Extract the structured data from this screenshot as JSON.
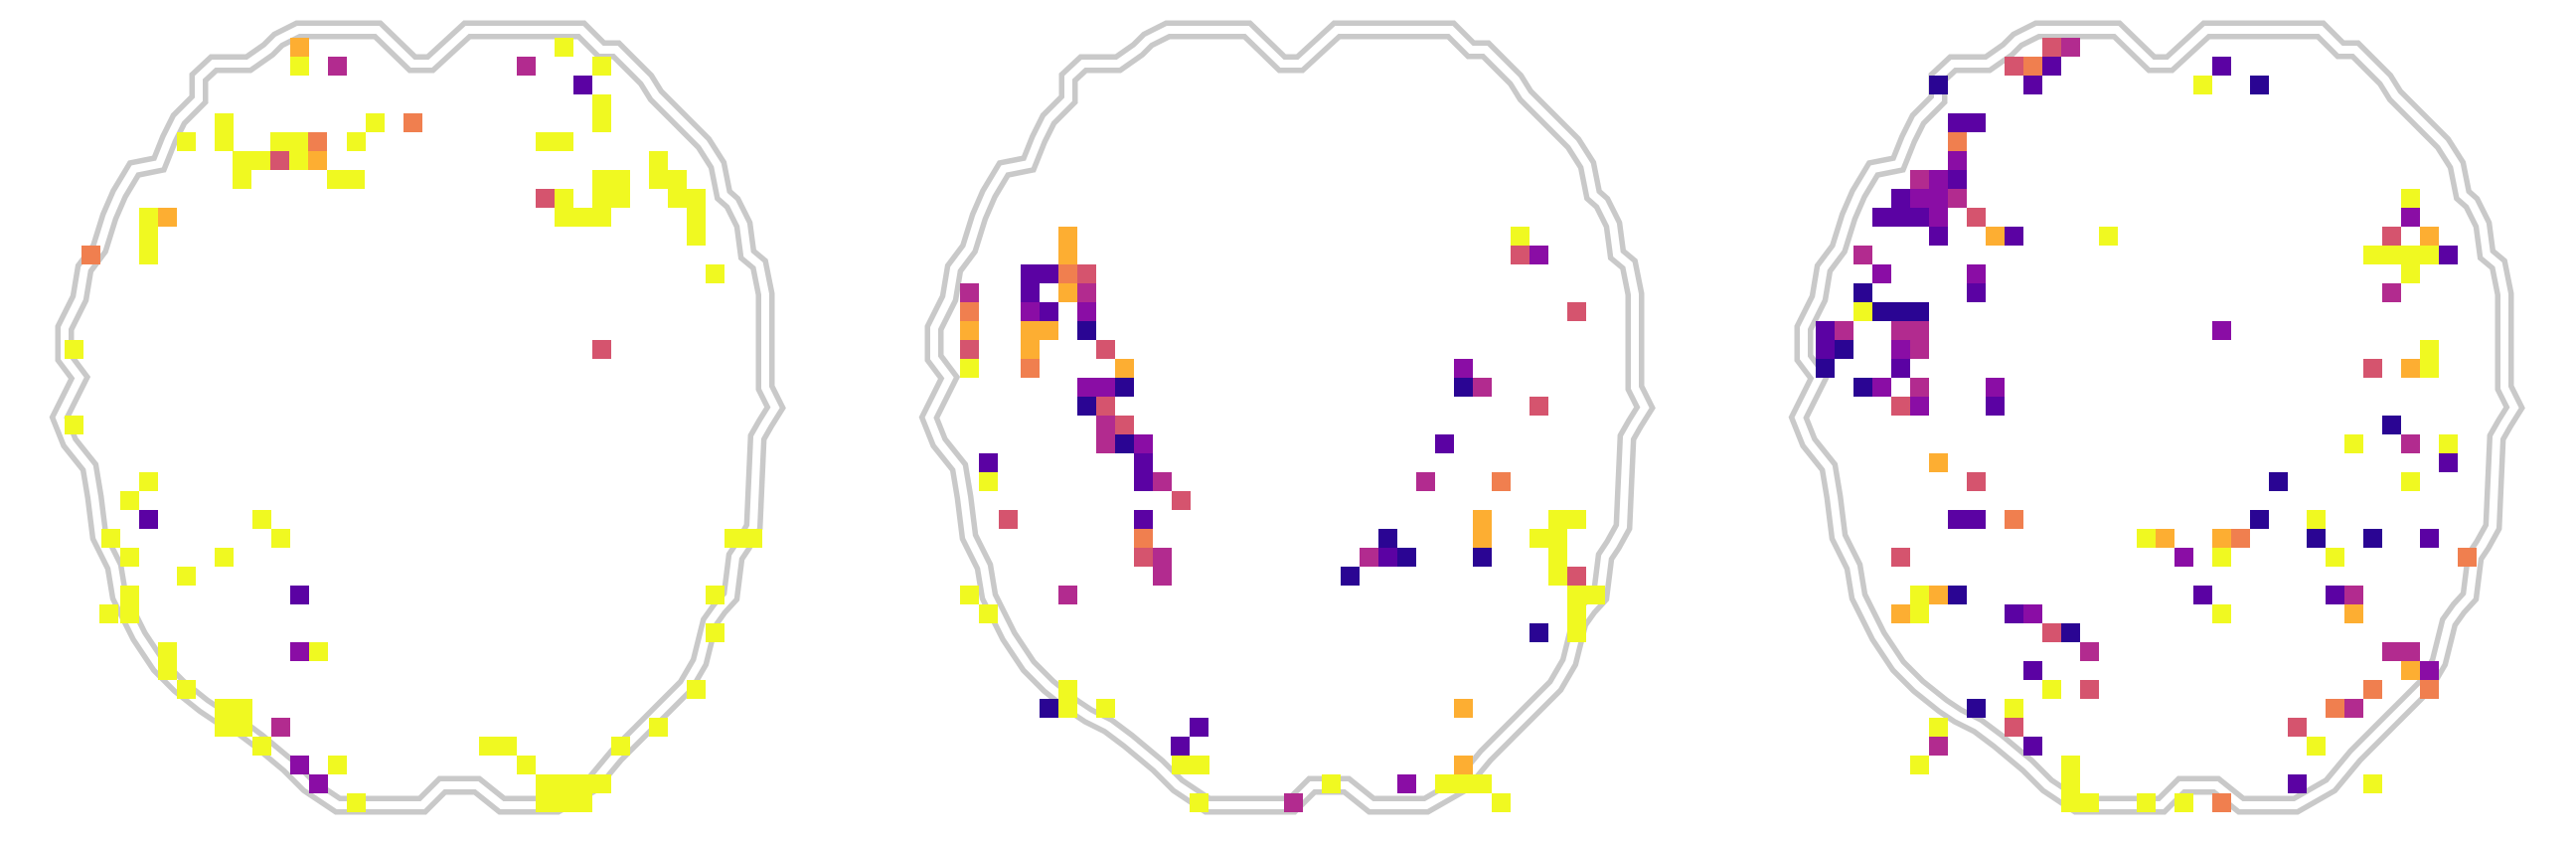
{
  "figure": {
    "title": "",
    "panels": [
      {
        "id": "panel-1",
        "colormap": "plasma"
      },
      {
        "id": "panel-2",
        "colormap": "plasma"
      },
      {
        "id": "panel-3",
        "colormap": "plasma"
      }
    ]
  },
  "palette": {
    "outline": "#c9c9c9",
    "background": "#ffffff",
    "plasma": [
      "#2a0593",
      "#5b02a3",
      "#8a0da5",
      "#b22b8f",
      "#d5546e",
      "#f07f4f",
      "#fdae32",
      "#f0f921"
    ]
  }
}
